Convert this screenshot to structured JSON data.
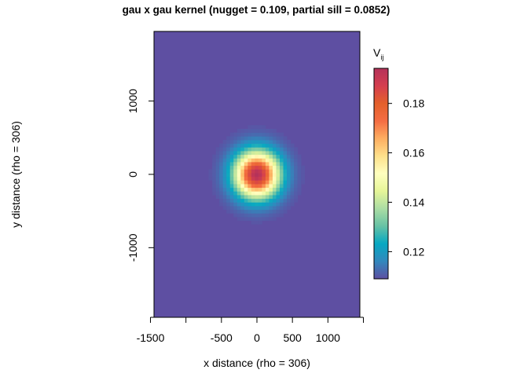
{
  "chart_data": {
    "type": "heatmap",
    "title": "gau x gau kernel (nugget = 0.109, partial sill = 0.0852)",
    "xlabel": "x distance (rho = 306)",
    "ylabel": "y distance (rho = 306)",
    "xlim": [
      -1450,
      1450
    ],
    "ylim": [
      -1950,
      1950
    ],
    "x_ticks": [
      -1500,
      -1000,
      -500,
      0,
      500,
      1000,
      1500
    ],
    "x_tick_labels": [
      "-1500",
      "",
      "-500",
      "0",
      "500",
      "1000",
      ""
    ],
    "y_ticks": [
      -1000,
      0,
      1000
    ],
    "y_tick_labels": [
      "-1000",
      "0",
      "1000"
    ],
    "surface": {
      "model": "gaussian x gaussian",
      "nugget": 0.109,
      "partial_sill": 0.0852,
      "rho_x": 306,
      "rho_y": 306,
      "center": [
        0,
        0
      ],
      "cell_size": 50
    },
    "colorbar": {
      "title": "V",
      "title_subscript": "ij",
      "range": [
        0.109,
        0.1942
      ],
      "ticks": [
        0.12,
        0.14,
        0.16,
        0.18
      ],
      "tick_labels": [
        "0.12",
        "0.14",
        "0.16",
        "0.18"
      ],
      "palette": [
        "#5E4FA2",
        "#3288BD",
        "#06A8C2",
        "#66C2A5",
        "#ABDDA4",
        "#E6F598",
        "#FFFFBF",
        "#FEE08B",
        "#FDAE61",
        "#F46D43",
        "#E4602B",
        "#D53E4F",
        "#B4325A"
      ]
    },
    "grid": false,
    "legend_placement": "right"
  }
}
